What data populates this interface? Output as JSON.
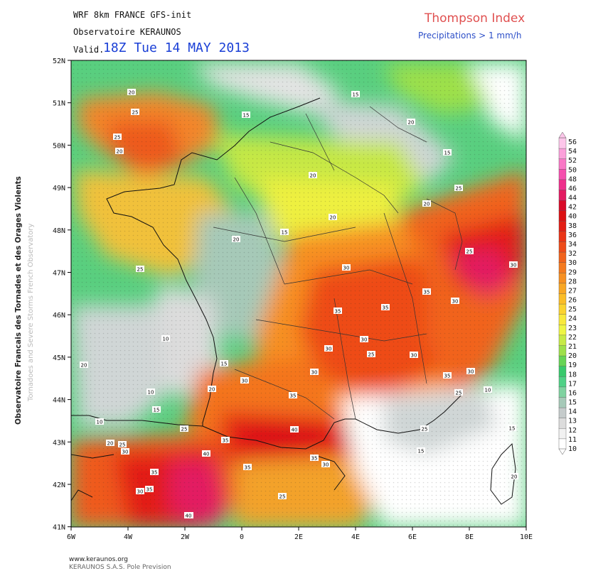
{
  "header": {
    "model_title": "WRF 8km FRANCE  GFS-init",
    "observatory": "Observatoire KERAUNOS",
    "valid_label": "Valid.",
    "valid_date": "18Z Tue 14 MAY 2013",
    "index_title": "Thompson Index",
    "precip_note": "Precipitations > 1 mm/h"
  },
  "side_text": {
    "line1": "Observatoire Francais des Tornades et des Orages Violents",
    "line2": "Tornadoes and Severe Storms French Observatory"
  },
  "footer": {
    "url": "www.keraunos.org",
    "company": "KERAUNOS S.A.S. Pole Prevision"
  },
  "map": {
    "lat_labels": [
      "52N",
      "51N",
      "50N",
      "49N",
      "48N",
      "47N",
      "46N",
      "45N",
      "44N",
      "43N",
      "42N",
      "41N"
    ],
    "lon_labels": [
      "6W",
      "4W",
      "2W",
      "0",
      "2E",
      "4E",
      "6E",
      "8E",
      "10E"
    ],
    "contour_labels": [
      "20",
      "25",
      "25",
      "20",
      "15",
      "15",
      "20",
      "15",
      "20",
      "25",
      "20",
      "20",
      "15",
      "20",
      "25",
      "30",
      "25",
      "30",
      "35",
      "30",
      "35",
      "35",
      "30",
      "30",
      "30",
      "25",
      "30",
      "35",
      "30",
      "25",
      "10",
      "20",
      "15",
      "20",
      "10",
      "15",
      "30",
      "35",
      "25",
      "25",
      "10",
      "30",
      "40",
      "35",
      "40",
      "35",
      "30",
      "35",
      "30",
      "35",
      "40",
      "25",
      "20",
      "15",
      "15",
      "20",
      "35",
      "25",
      "30",
      "40",
      "10",
      "20"
    ],
    "precip_marker": "dotted stipple",
    "colors": {
      "land_border": "#333333",
      "coast": "#000000",
      "sea_low": "#ffffff"
    }
  },
  "colorbar": {
    "levels": [
      10,
      11,
      12,
      13,
      14,
      15,
      16,
      17,
      18,
      19,
      20,
      21,
      22,
      23,
      24,
      25,
      26,
      27,
      28,
      29,
      30,
      31,
      32,
      33,
      34,
      35,
      36,
      37,
      38,
      39,
      40,
      41,
      42,
      43,
      44,
      45,
      46,
      47,
      48,
      49,
      50,
      51,
      52,
      53,
      54,
      55,
      56
    ],
    "labels": [
      "56",
      "54",
      "52",
      "50",
      "48",
      "46",
      "44",
      "42",
      "40",
      "38",
      "36",
      "34",
      "32",
      "30",
      "29",
      "28",
      "27",
      "26",
      "25",
      "24",
      "23",
      "22",
      "21",
      "20",
      "19",
      "18",
      "17",
      "16",
      "15",
      "14",
      "13",
      "12",
      "11",
      "10"
    ],
    "colors": [
      "#ffffff",
      "#f1f1f1",
      "#dcdcdc",
      "#c5cbcb",
      "#a6c9b8",
      "#7fd2a0",
      "#4fd186",
      "#38c96c",
      "#66d455",
      "#9ee04a",
      "#c7ea46",
      "#eef544",
      "#f8e93c",
      "#fbd330",
      "#fbbd28",
      "#f9a725",
      "#f79022",
      "#f47a1f",
      "#f1631c",
      "#ee4b19",
      "#ea3416",
      "#e31e14",
      "#dc1113",
      "#d90a28",
      "#e31a62",
      "#ee2e8c",
      "#f54fae",
      "#f978c6",
      "#fba0da",
      "#fdc6ea"
    ]
  }
}
